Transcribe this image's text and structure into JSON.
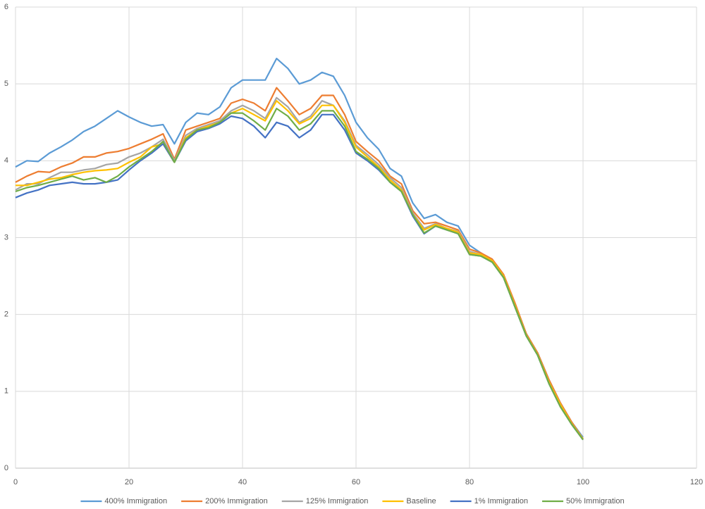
{
  "chart_data": {
    "type": "line",
    "x": [
      0,
      2,
      4,
      6,
      8,
      10,
      12,
      14,
      16,
      18,
      20,
      22,
      24,
      26,
      28,
      30,
      32,
      34,
      36,
      38,
      40,
      42,
      44,
      46,
      48,
      50,
      52,
      54,
      56,
      58,
      60,
      62,
      64,
      66,
      68,
      70,
      72,
      74,
      76,
      78,
      80,
      82,
      84,
      86,
      88,
      90,
      92,
      94,
      96,
      98,
      100
    ],
    "series": [
      {
        "name": "400% Immigration",
        "color": "#5b9bd5",
        "values": [
          3.92,
          4.0,
          3.99,
          4.1,
          4.18,
          4.27,
          4.38,
          4.45,
          4.55,
          4.65,
          4.57,
          4.5,
          4.45,
          4.47,
          4.22,
          4.5,
          4.62,
          4.6,
          4.7,
          4.95,
          5.05,
          5.05,
          5.05,
          5.33,
          5.2,
          5.0,
          5.05,
          5.15,
          5.1,
          4.85,
          4.5,
          4.3,
          4.15,
          3.9,
          3.8,
          3.45,
          3.25,
          3.3,
          3.2,
          3.15,
          2.9,
          2.8,
          2.7,
          2.5,
          2.1,
          1.75,
          1.5,
          1.15,
          0.85,
          0.6,
          0.4
        ]
      },
      {
        "name": "200% Immigration",
        "color": "#ed7d31",
        "values": [
          3.72,
          3.8,
          3.86,
          3.85,
          3.92,
          3.97,
          4.05,
          4.05,
          4.1,
          4.12,
          4.16,
          4.22,
          4.28,
          4.35,
          4.02,
          4.4,
          4.45,
          4.5,
          4.55,
          4.75,
          4.8,
          4.75,
          4.65,
          4.95,
          4.78,
          4.6,
          4.68,
          4.85,
          4.85,
          4.6,
          4.25,
          4.12,
          4.0,
          3.8,
          3.7,
          3.35,
          3.18,
          3.2,
          3.15,
          3.1,
          2.85,
          2.8,
          2.72,
          2.52,
          2.15,
          1.75,
          1.5,
          1.15,
          0.85,
          0.6,
          0.38
        ]
      },
      {
        "name": "125% Immigration",
        "color": "#a5a5a5",
        "values": [
          3.62,
          3.7,
          3.7,
          3.78,
          3.85,
          3.85,
          3.88,
          3.9,
          3.95,
          3.97,
          4.05,
          4.1,
          4.18,
          4.28,
          4.0,
          4.33,
          4.42,
          4.47,
          4.52,
          4.65,
          4.72,
          4.65,
          4.55,
          4.82,
          4.7,
          4.5,
          4.58,
          4.78,
          4.72,
          4.52,
          4.2,
          4.08,
          3.95,
          3.78,
          3.65,
          3.32,
          3.12,
          3.18,
          3.12,
          3.08,
          2.82,
          2.78,
          2.7,
          2.5,
          2.12,
          1.73,
          1.48,
          1.12,
          0.83,
          0.58,
          0.38
        ]
      },
      {
        "name": "Baseline",
        "color": "#ffc000",
        "values": [
          3.68,
          3.68,
          3.72,
          3.76,
          3.78,
          3.82,
          3.85,
          3.87,
          3.88,
          3.9,
          3.98,
          4.05,
          4.18,
          4.22,
          3.98,
          4.3,
          4.4,
          4.45,
          4.5,
          4.62,
          4.68,
          4.6,
          4.52,
          4.78,
          4.65,
          4.48,
          4.55,
          4.72,
          4.72,
          4.5,
          4.18,
          4.05,
          3.92,
          3.75,
          3.62,
          3.3,
          3.1,
          3.17,
          3.12,
          3.07,
          2.8,
          2.78,
          2.7,
          2.5,
          2.12,
          1.73,
          1.48,
          1.12,
          0.83,
          0.58,
          0.38
        ]
      },
      {
        "name": "1% Immigration",
        "color": "#4472c4",
        "values": [
          3.52,
          3.58,
          3.62,
          3.68,
          3.7,
          3.72,
          3.7,
          3.7,
          3.72,
          3.75,
          3.88,
          4.0,
          4.1,
          4.22,
          3.98,
          4.26,
          4.38,
          4.42,
          4.48,
          4.58,
          4.55,
          4.45,
          4.3,
          4.5,
          4.45,
          4.3,
          4.4,
          4.6,
          4.6,
          4.4,
          4.1,
          4.0,
          3.88,
          3.72,
          3.6,
          3.28,
          3.05,
          3.15,
          3.1,
          3.05,
          2.78,
          2.76,
          2.68,
          2.48,
          2.1,
          1.72,
          1.47,
          1.1,
          0.8,
          0.57,
          0.37
        ]
      },
      {
        "name": "50% Immigration",
        "color": "#70ad47",
        "values": [
          3.6,
          3.65,
          3.68,
          3.72,
          3.76,
          3.8,
          3.75,
          3.78,
          3.72,
          3.8,
          3.92,
          4.02,
          4.12,
          4.25,
          3.98,
          4.28,
          4.4,
          4.43,
          4.5,
          4.62,
          4.62,
          4.52,
          4.4,
          4.68,
          4.58,
          4.4,
          4.48,
          4.65,
          4.65,
          4.45,
          4.12,
          4.02,
          3.9,
          3.72,
          3.6,
          3.3,
          3.06,
          3.15,
          3.1,
          3.05,
          2.78,
          2.76,
          2.68,
          2.48,
          2.1,
          1.72,
          1.47,
          1.1,
          0.8,
          0.57,
          0.37
        ]
      }
    ],
    "xlim": [
      0,
      120
    ],
    "xticks": [
      0,
      20,
      40,
      60,
      80,
      100,
      120
    ],
    "ylim": [
      0,
      6
    ],
    "yticks": [
      0,
      1,
      2,
      3,
      4,
      5,
      6
    ],
    "grid": true,
    "legend": "bottom"
  }
}
